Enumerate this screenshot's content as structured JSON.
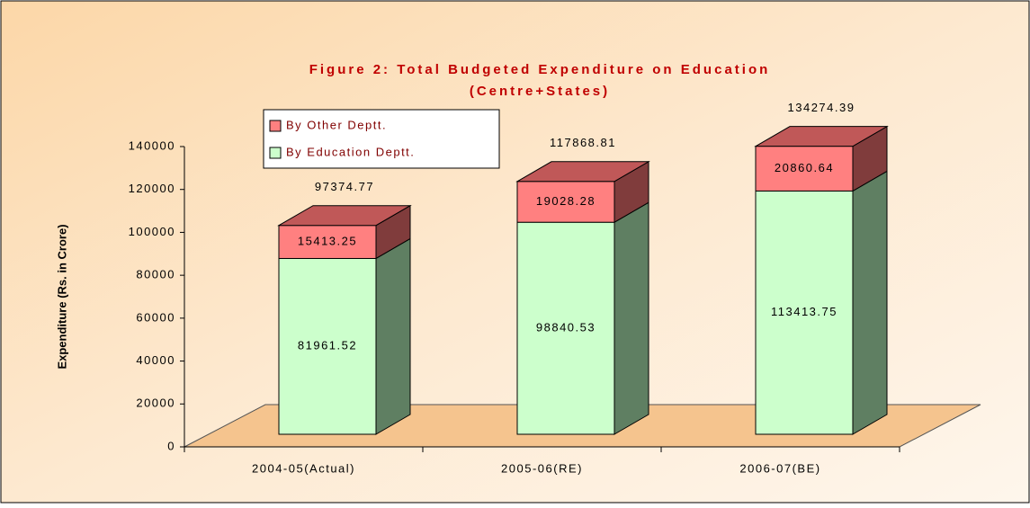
{
  "chart_data": {
    "type": "bar3d-stacked",
    "title": "Figure 2: Total Budgeted Expenditure on Education",
    "subtitle": "(Centre+States)",
    "y_label": "Expenditure (Rs. in Crore)",
    "categories": [
      "2004-05(Actual)",
      "2005-06(RE)",
      "2006-07(BE)"
    ],
    "series": [
      {
        "name": "By Education Deptt.",
        "color": "#ccffcc",
        "side": "#5f7f62",
        "top": "#a8d8a8",
        "values": [
          81961.52,
          98840.53,
          113413.75
        ]
      },
      {
        "name": "By Other Deptt.",
        "color": "#ff8080",
        "side": "#803c3c",
        "top": "#c05858",
        "values": [
          15413.25,
          19028.28,
          20860.64
        ]
      }
    ],
    "totals": [
      97374.77,
      117868.81,
      134274.39
    ],
    "ylim": [
      0,
      140000
    ],
    "yticks": [
      0,
      20000,
      40000,
      60000,
      80000,
      100000,
      120000,
      140000
    ]
  }
}
